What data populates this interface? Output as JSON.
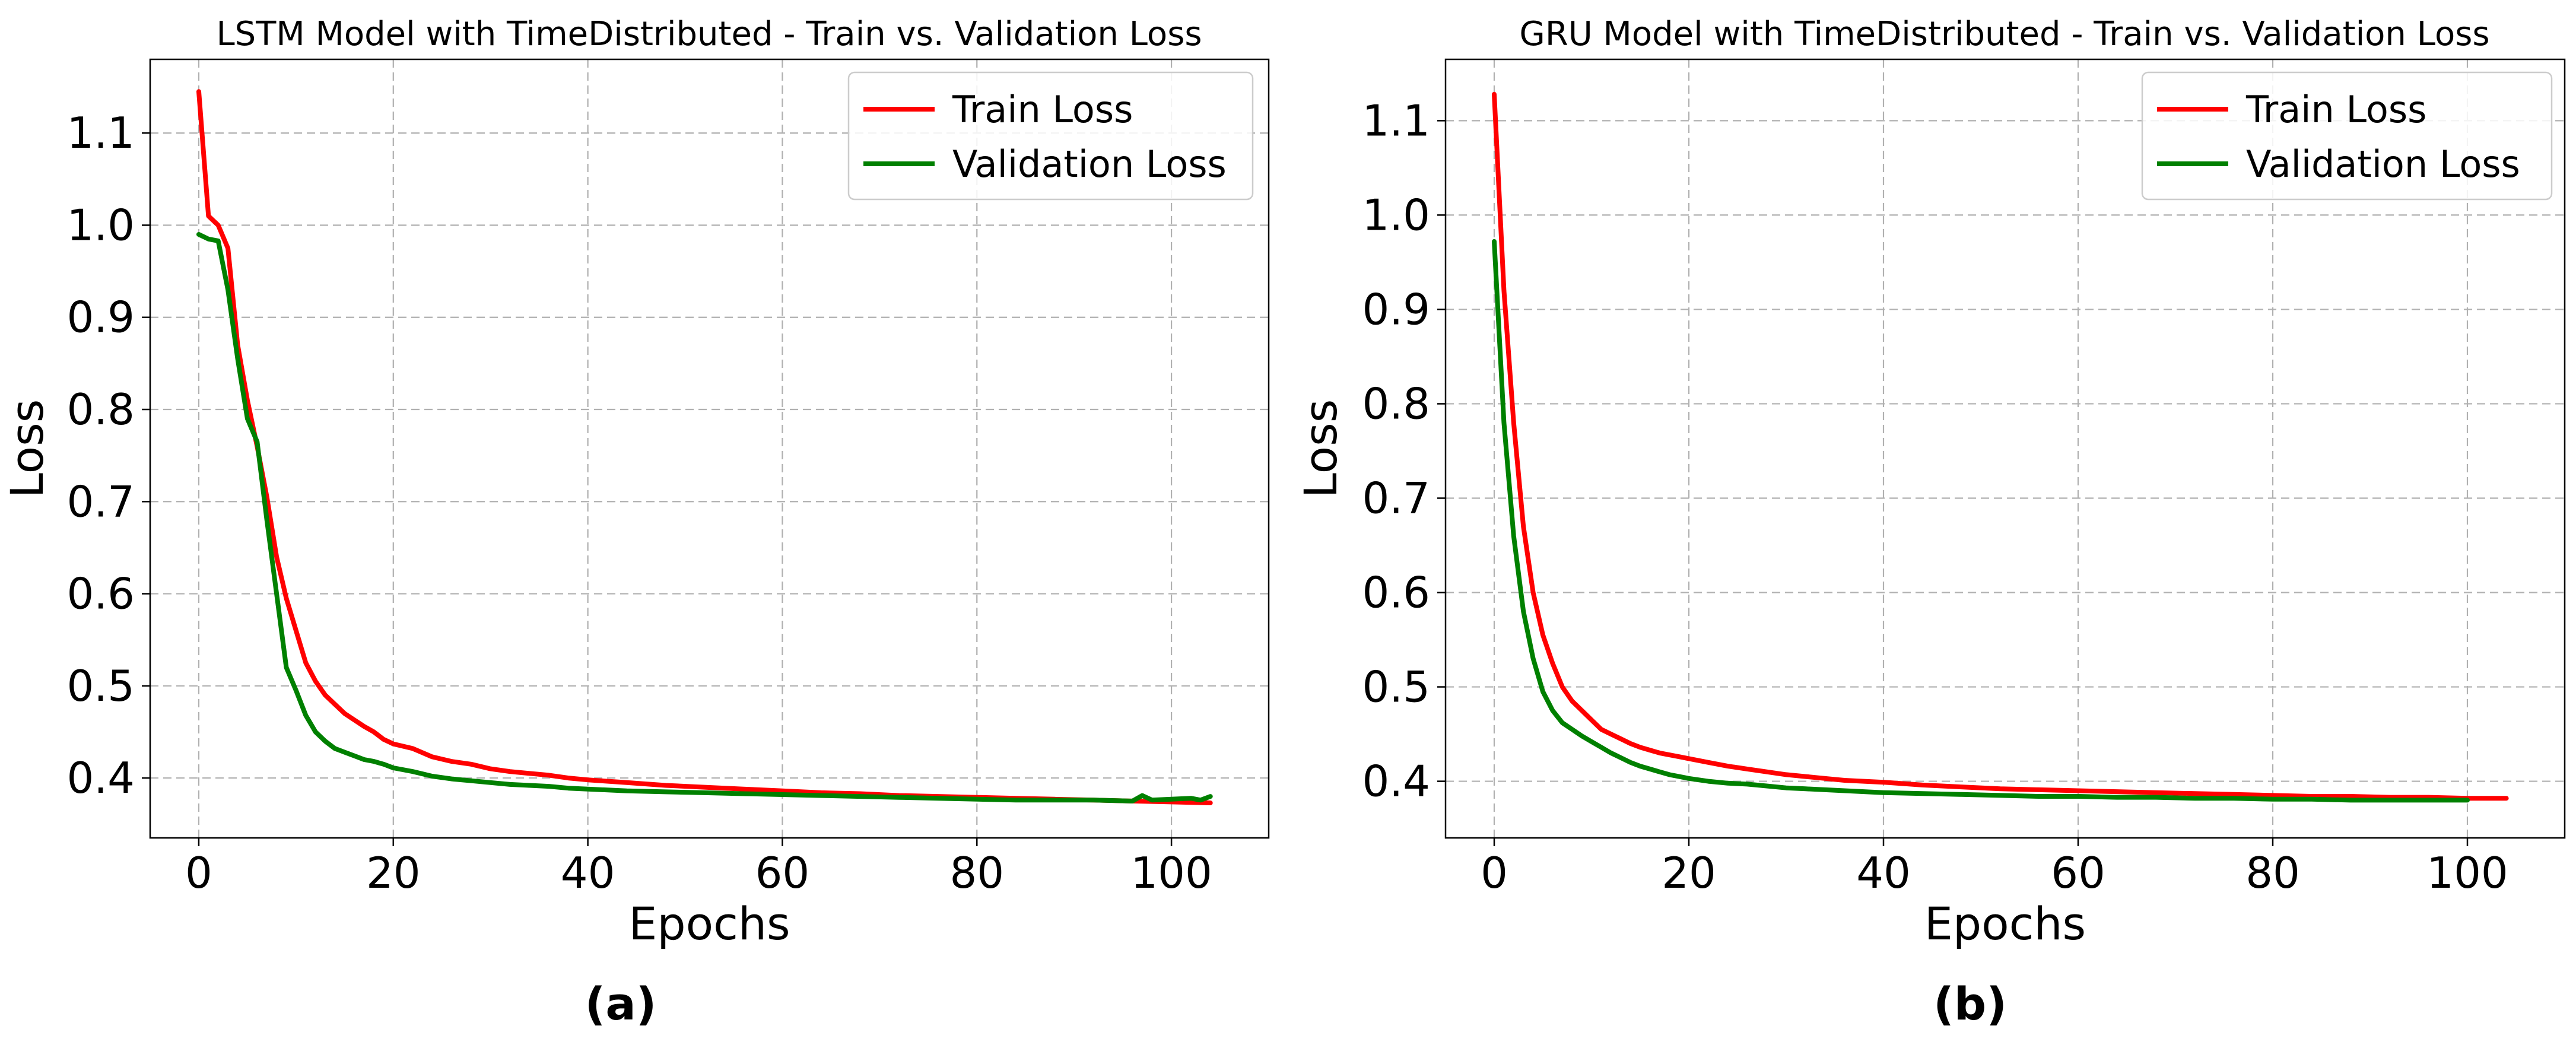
{
  "figure": {
    "panel_labels": [
      "(a)",
      "(b)"
    ]
  },
  "chart_data": [
    {
      "type": "line",
      "title": "LSTM Model with TimeDistributed - Train vs. Validation Loss",
      "xlabel": "Epochs",
      "ylabel": "Loss",
      "xlim": [
        -5,
        110
      ],
      "ylim": [
        0.335,
        1.18
      ],
      "xticks": [
        0,
        20,
        40,
        60,
        80,
        100
      ],
      "yticks": [
        0.4,
        0.5,
        0.6,
        0.7,
        0.8,
        0.9,
        1.0,
        1.1
      ],
      "xtick_labels": [
        "0",
        "20",
        "40",
        "60",
        "80",
        "100"
      ],
      "ytick_labels": [
        "0.4",
        "0.5",
        "0.6",
        "0.7",
        "0.8",
        "0.9",
        "1.0",
        "1.1"
      ],
      "grid": true,
      "legend_position": "upper right",
      "series": [
        {
          "name": "Train Loss",
          "color": "#ff0000",
          "x": [
            0,
            1,
            2,
            3,
            4,
            5,
            6,
            7,
            8,
            9,
            10,
            11,
            12,
            13,
            14,
            15,
            16,
            17,
            18,
            19,
            20,
            22,
            24,
            26,
            28,
            30,
            32,
            34,
            36,
            38,
            40,
            44,
            48,
            52,
            56,
            60,
            64,
            68,
            72,
            76,
            80,
            84,
            88,
            92,
            96,
            100,
            104
          ],
          "y": [
            1.145,
            1.01,
            1.0,
            0.975,
            0.87,
            0.81,
            0.76,
            0.705,
            0.64,
            0.595,
            0.56,
            0.525,
            0.505,
            0.49,
            0.48,
            0.47,
            0.463,
            0.456,
            0.45,
            0.442,
            0.437,
            0.432,
            0.423,
            0.418,
            0.415,
            0.41,
            0.407,
            0.405,
            0.403,
            0.4,
            0.398,
            0.395,
            0.392,
            0.39,
            0.388,
            0.386,
            0.384,
            0.383,
            0.381,
            0.38,
            0.379,
            0.378,
            0.377,
            0.376,
            0.375,
            0.374,
            0.373
          ]
        },
        {
          "name": "Validation Loss",
          "color": "#008000",
          "x": [
            0,
            1,
            2,
            3,
            4,
            5,
            6,
            7,
            8,
            9,
            10,
            11,
            12,
            13,
            14,
            15,
            16,
            17,
            18,
            19,
            20,
            22,
            24,
            26,
            28,
            30,
            32,
            34,
            36,
            38,
            40,
            44,
            48,
            52,
            56,
            60,
            64,
            68,
            72,
            76,
            80,
            84,
            88,
            92,
            96,
            97,
            98,
            100,
            102,
            103,
            104
          ],
          "y": [
            0.99,
            0.985,
            0.983,
            0.93,
            0.855,
            0.79,
            0.765,
            0.68,
            0.6,
            0.52,
            0.495,
            0.468,
            0.45,
            0.44,
            0.432,
            0.428,
            0.424,
            0.42,
            0.418,
            0.415,
            0.411,
            0.407,
            0.402,
            0.399,
            0.397,
            0.395,
            0.393,
            0.392,
            0.391,
            0.389,
            0.388,
            0.386,
            0.385,
            0.384,
            0.383,
            0.382,
            0.381,
            0.38,
            0.379,
            0.378,
            0.377,
            0.376,
            0.376,
            0.376,
            0.375,
            0.381,
            0.376,
            0.377,
            0.378,
            0.376,
            0.38
          ]
        }
      ]
    },
    {
      "type": "line",
      "title": "GRU Model with TimeDistributed - Train vs. Validation Loss",
      "xlabel": "Epochs",
      "ylabel": "Loss",
      "xlim": [
        -5,
        110
      ],
      "ylim": [
        0.34,
        1.165
      ],
      "xticks": [
        0,
        20,
        40,
        60,
        80,
        100
      ],
      "yticks": [
        0.4,
        0.5,
        0.6,
        0.7,
        0.8,
        0.9,
        1.0,
        1.1
      ],
      "xtick_labels": [
        "0",
        "20",
        "40",
        "60",
        "80",
        "100"
      ],
      "ytick_labels": [
        "0.4",
        "0.5",
        "0.6",
        "0.7",
        "0.8",
        "0.9",
        "1.0",
        "1.1"
      ],
      "grid": true,
      "legend_position": "upper right",
      "series": [
        {
          "name": "Train Loss",
          "color": "#ff0000",
          "x": [
            0,
            1,
            2,
            3,
            4,
            5,
            6,
            7,
            8,
            9,
            10,
            11,
            12,
            13,
            14,
            15,
            16,
            17,
            18,
            19,
            20,
            22,
            24,
            26,
            28,
            30,
            32,
            34,
            36,
            38,
            40,
            44,
            48,
            52,
            56,
            60,
            64,
            68,
            72,
            76,
            80,
            84,
            88,
            92,
            96,
            100,
            104
          ],
          "y": [
            1.128,
            0.92,
            0.78,
            0.67,
            0.6,
            0.555,
            0.525,
            0.5,
            0.485,
            0.475,
            0.465,
            0.455,
            0.45,
            0.445,
            0.44,
            0.436,
            0.433,
            0.43,
            0.428,
            0.426,
            0.424,
            0.42,
            0.416,
            0.413,
            0.41,
            0.407,
            0.405,
            0.403,
            0.401,
            0.4,
            0.399,
            0.396,
            0.394,
            0.392,
            0.391,
            0.39,
            0.389,
            0.388,
            0.387,
            0.386,
            0.385,
            0.384,
            0.384,
            0.383,
            0.383,
            0.382,
            0.382
          ]
        },
        {
          "name": "Validation Loss",
          "color": "#008000",
          "x": [
            0,
            1,
            2,
            3,
            4,
            5,
            6,
            7,
            8,
            9,
            10,
            11,
            12,
            13,
            14,
            15,
            16,
            17,
            18,
            19,
            20,
            22,
            24,
            26,
            28,
            30,
            32,
            34,
            36,
            38,
            40,
            44,
            48,
            52,
            56,
            60,
            64,
            68,
            72,
            76,
            80,
            84,
            88,
            92,
            96,
            100
          ],
          "y": [
            0.972,
            0.78,
            0.66,
            0.58,
            0.53,
            0.495,
            0.475,
            0.462,
            0.455,
            0.448,
            0.442,
            0.436,
            0.43,
            0.425,
            0.42,
            0.416,
            0.413,
            0.41,
            0.407,
            0.405,
            0.403,
            0.4,
            0.398,
            0.397,
            0.395,
            0.393,
            0.392,
            0.391,
            0.39,
            0.389,
            0.388,
            0.387,
            0.386,
            0.385,
            0.384,
            0.384,
            0.383,
            0.383,
            0.382,
            0.382,
            0.381,
            0.381,
            0.38,
            0.38,
            0.38,
            0.38
          ]
        }
      ]
    }
  ]
}
